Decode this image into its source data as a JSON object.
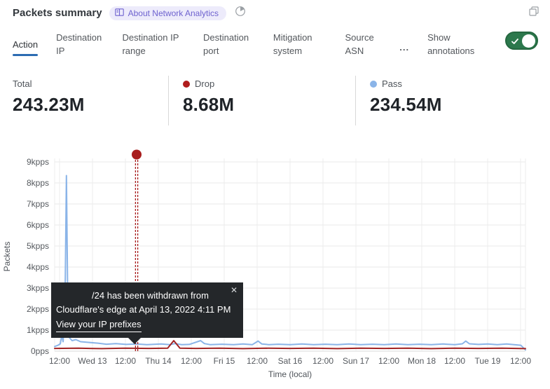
{
  "header": {
    "title": "Packets summary",
    "badge_label": "About Network Analytics"
  },
  "window_icon": "restore-window-icon",
  "tabs": {
    "items": [
      {
        "label": "Action",
        "active": true
      },
      {
        "label": "Destination IP",
        "active": false
      },
      {
        "label": "Destination IP range",
        "active": false
      },
      {
        "label": "Destination port",
        "active": false
      },
      {
        "label": "Mitigation system",
        "active": false
      },
      {
        "label": "Source ASN",
        "active": false
      }
    ],
    "more_label": "...",
    "annotations_label": "Show annotations",
    "annotations_toggle_on": true
  },
  "stats": {
    "0": {
      "label": "Total",
      "value": "243.23M"
    },
    "1": {
      "label": "Drop",
      "value": "8.68M",
      "dot_color": "#b01c1c"
    },
    "2": {
      "label": "Pass",
      "value": "234.54M",
      "dot_color": "#8ab4e8"
    }
  },
  "tooltip": {
    "line1": "/24 has been withdrawn from",
    "line2": "Cloudflare's edge at April 13, 2022 4:11 PM",
    "link": "View your IP prefixes",
    "close": "✕"
  },
  "colors": {
    "pass_line": "#8ab4e8",
    "drop_line": "#a32424",
    "annotation": "#a81d1d",
    "grid": "#e9e9e9",
    "toggle_green": "#2c784c",
    "active_tab_underline": "#2c6cb2",
    "badge_bg": "#edebfb",
    "badge_text": "#6e62cf"
  },
  "chart_data": {
    "type": "line",
    "title": "Packets summary over time",
    "ylabel": "Packets",
    "xlabel": "Time (local)",
    "ylim": [
      0,
      9.4
    ],
    "y_unit": "kpps",
    "grid": true,
    "y_tick_labels": [
      "0pps",
      "1kpps",
      "2kpps",
      "3kpps",
      "4kpps",
      "5kpps",
      "6kpps",
      "7kpps",
      "8kpps",
      "9kpps"
    ],
    "x_tick_labels": [
      "12:00",
      "Wed 13",
      "12:00",
      "Thu 14",
      "12:00",
      "Fri 15",
      "12:00",
      "Sat 16",
      "12:00",
      "Sun 17",
      "12:00",
      "Mon 18",
      "12:00",
      "Tue 19",
      "12:00"
    ],
    "series": [
      {
        "name": "Pass",
        "color": "#8ab4e8",
        "points": [
          [
            0.0,
            0.22
          ],
          [
            0.007,
            0.28
          ],
          [
            0.012,
            0.35
          ],
          [
            0.015,
            0.75
          ],
          [
            0.018,
            0.45
          ],
          [
            0.022,
            2.2
          ],
          [
            0.025,
            8.35
          ],
          [
            0.028,
            2.0
          ],
          [
            0.031,
            0.65
          ],
          [
            0.037,
            0.5
          ],
          [
            0.045,
            0.55
          ],
          [
            0.055,
            0.45
          ],
          [
            0.07,
            0.42
          ],
          [
            0.092,
            0.38
          ],
          [
            0.11,
            0.33
          ],
          [
            0.13,
            0.36
          ],
          [
            0.152,
            0.32
          ],
          [
            0.174,
            0.34
          ],
          [
            0.196,
            0.31
          ],
          [
            0.226,
            0.34
          ],
          [
            0.245,
            0.31
          ],
          [
            0.256,
            0.36
          ],
          [
            0.27,
            0.31
          ],
          [
            0.286,
            0.32
          ],
          [
            0.31,
            0.5
          ],
          [
            0.318,
            0.36
          ],
          [
            0.33,
            0.31
          ],
          [
            0.355,
            0.33
          ],
          [
            0.38,
            0.31
          ],
          [
            0.4,
            0.34
          ],
          [
            0.42,
            0.31
          ],
          [
            0.432,
            0.48
          ],
          [
            0.44,
            0.34
          ],
          [
            0.455,
            0.31
          ],
          [
            0.475,
            0.33
          ],
          [
            0.5,
            0.31
          ],
          [
            0.525,
            0.34
          ],
          [
            0.55,
            0.31
          ],
          [
            0.575,
            0.33
          ],
          [
            0.6,
            0.31
          ],
          [
            0.625,
            0.34
          ],
          [
            0.65,
            0.31
          ],
          [
            0.675,
            0.33
          ],
          [
            0.7,
            0.31
          ],
          [
            0.725,
            0.34
          ],
          [
            0.75,
            0.31
          ],
          [
            0.775,
            0.33
          ],
          [
            0.8,
            0.31
          ],
          [
            0.825,
            0.34
          ],
          [
            0.85,
            0.31
          ],
          [
            0.866,
            0.35
          ],
          [
            0.873,
            0.48
          ],
          [
            0.881,
            0.35
          ],
          [
            0.9,
            0.32
          ],
          [
            0.92,
            0.34
          ],
          [
            0.94,
            0.31
          ],
          [
            0.96,
            0.34
          ],
          [
            0.98,
            0.3
          ],
          [
            0.99,
            0.28
          ],
          [
            1.0,
            0.06
          ]
        ]
      },
      {
        "name": "Drop",
        "color": "#a32424",
        "points": [
          [
            0.0,
            0.13
          ],
          [
            0.05,
            0.14
          ],
          [
            0.1,
            0.12
          ],
          [
            0.15,
            0.14
          ],
          [
            0.2,
            0.13
          ],
          [
            0.24,
            0.14
          ],
          [
            0.253,
            0.5
          ],
          [
            0.266,
            0.14
          ],
          [
            0.3,
            0.13
          ],
          [
            0.35,
            0.14
          ],
          [
            0.4,
            0.12
          ],
          [
            0.45,
            0.14
          ],
          [
            0.5,
            0.13
          ],
          [
            0.55,
            0.14
          ],
          [
            0.6,
            0.12
          ],
          [
            0.65,
            0.14
          ],
          [
            0.7,
            0.13
          ],
          [
            0.75,
            0.14
          ],
          [
            0.8,
            0.12
          ],
          [
            0.85,
            0.14
          ],
          [
            0.9,
            0.13
          ],
          [
            0.95,
            0.14
          ],
          [
            1.0,
            0.12
          ]
        ]
      }
    ],
    "annotation": {
      "x_frac": 0.1741,
      "dot_kpps": 9.35,
      "color": "#a81d1d",
      "text": "/24 has been withdrawn from Cloudflare's edge at April 13, 2022 4:11 PM",
      "link": "View your IP prefixes"
    }
  }
}
